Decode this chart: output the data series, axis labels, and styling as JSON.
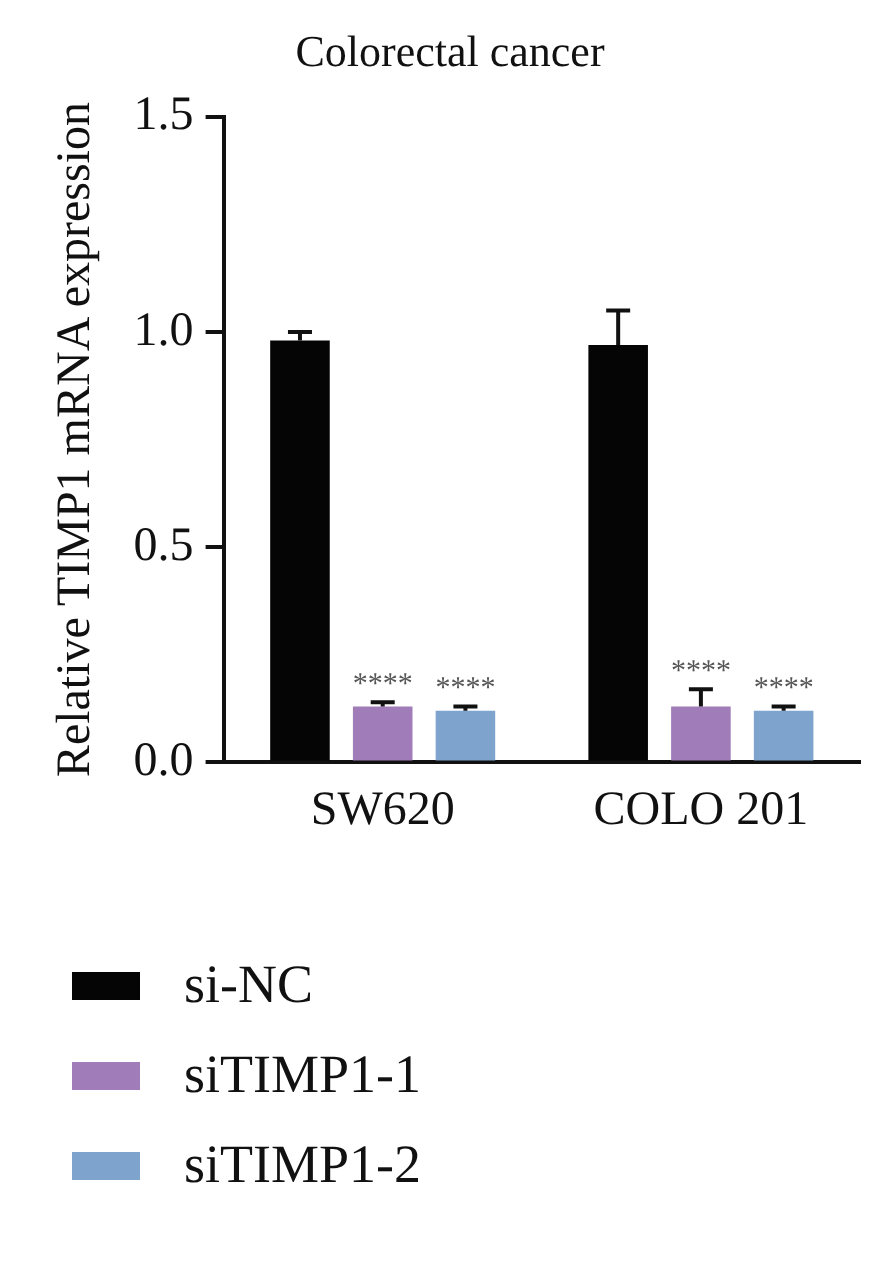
{
  "chart_data": {
    "type": "bar",
    "title": "Colorectal cancer",
    "ylabel": "Relative TIMP1 mRNA expression",
    "categories": [
      "SW620",
      "COLO 201"
    ],
    "series": [
      {
        "name": "si-NC",
        "color": "#050505",
        "values": [
          0.98,
          0.97
        ],
        "errors": [
          [
            0.98,
            1.0
          ],
          [
            0.97,
            1.05
          ]
        ]
      },
      {
        "name": "siTIMP1-1",
        "color": "#a07cb8",
        "values": [
          0.13,
          0.13
        ],
        "errors": [
          [
            0.13,
            0.14
          ],
          [
            0.13,
            0.17
          ]
        ],
        "value_labels": [
          "****",
          "****"
        ]
      },
      {
        "name": "siTIMP1-2",
        "color": "#7ea3cc",
        "values": [
          0.12,
          0.12
        ],
        "errors": [
          [
            0.12,
            0.13
          ],
          [
            0.12,
            0.13
          ]
        ],
        "value_labels": [
          "****",
          "****"
        ]
      }
    ],
    "ylim": [
      0,
      1.5
    ],
    "yticks": [
      {
        "value": 0,
        "label": "0.0"
      },
      0.5,
      {
        "value": 1,
        "label": "1.0"
      },
      1.5
    ],
    "grid": false,
    "legend": "bottom"
  }
}
